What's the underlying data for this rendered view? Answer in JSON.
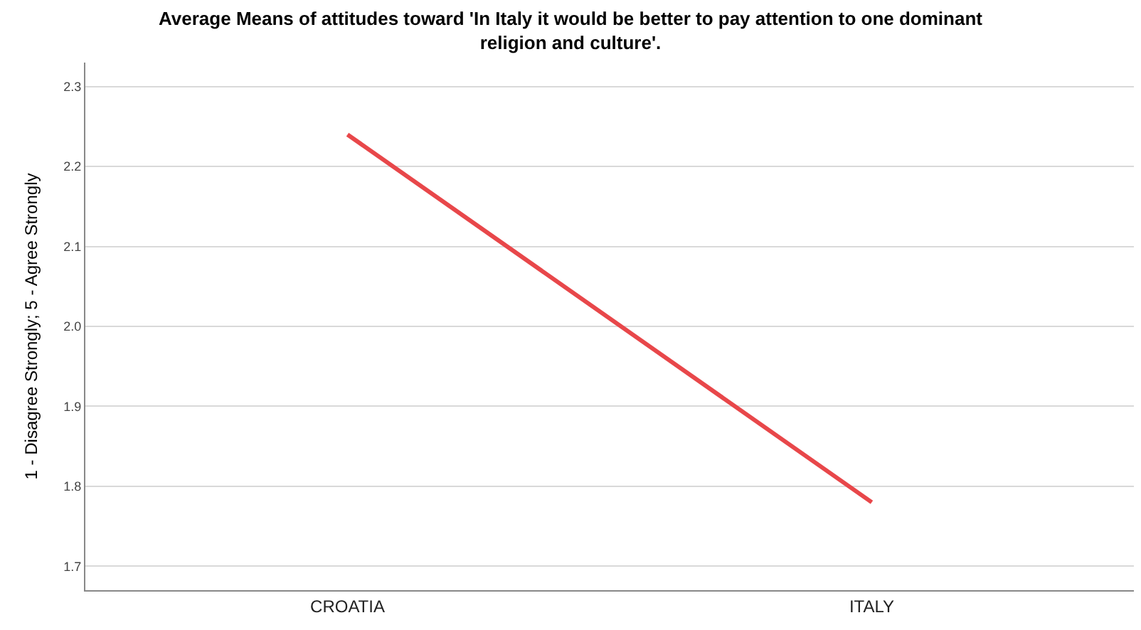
{
  "chart_data": {
    "type": "line",
    "title": "Average Means of attitudes toward 'In Italy it would be better to pay attention to one dominant religion and culture'.",
    "ylabel": "1 - Disagree Strongly; 5 - Agree Strongly",
    "categories": [
      "CROATIA",
      "ITALY"
    ],
    "series": [
      {
        "color": "#e8474a",
        "values": [
          2.24,
          1.78
        ]
      }
    ],
    "ylim": [
      1.67,
      2.33
    ],
    "yticks": [
      {
        "value": 1.7,
        "label": "1.7"
      },
      {
        "value": 1.8,
        "label": "1.8"
      },
      {
        "value": 1.9,
        "label": "1.9"
      },
      {
        "value": 2.0,
        "label": "2.0"
      },
      {
        "value": 2.1,
        "label": "2.1"
      },
      {
        "value": 2.2,
        "label": "2.2"
      },
      {
        "value": 2.3,
        "label": "2.3"
      }
    ],
    "grid": "y",
    "marker": "none",
    "line_style": "solid"
  }
}
